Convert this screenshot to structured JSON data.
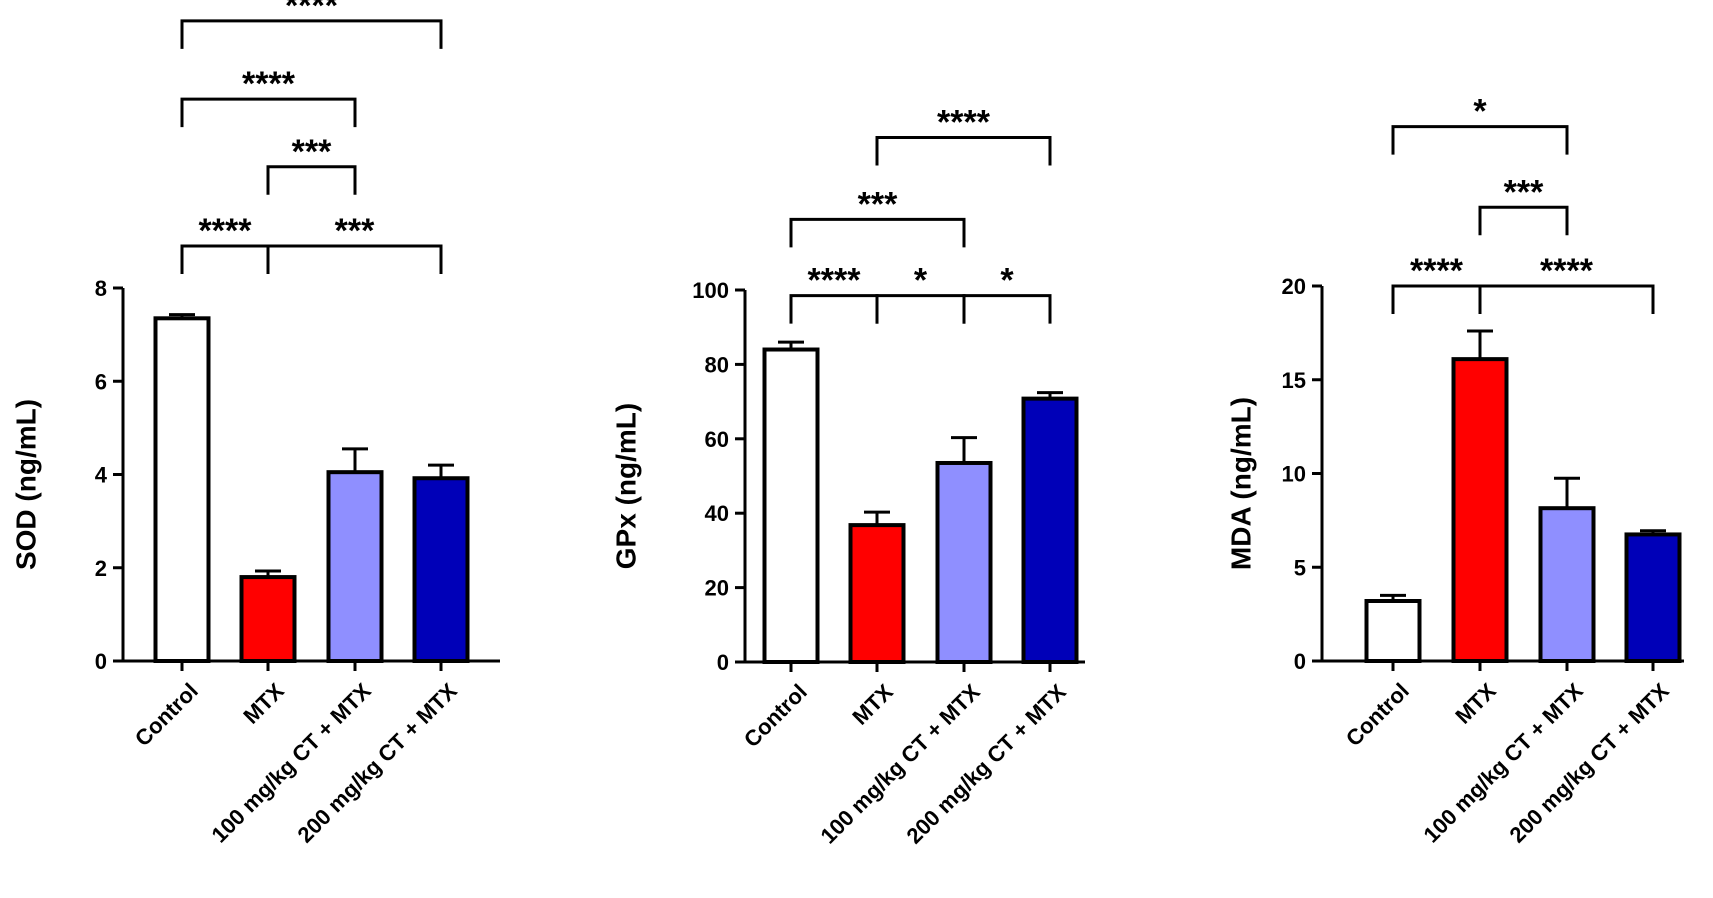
{
  "chart_data": [
    {
      "type": "bar",
      "ylabel": "SOD (ng/mL)",
      "categories": [
        "Control",
        "MTX",
        "100 mg/kg CT + MTX",
        "200 mg/kg CT + MTX"
      ],
      "values": [
        7.35,
        1.8,
        4.05,
        3.92
      ],
      "errors": [
        0.08,
        0.13,
        0.5,
        0.28
      ],
      "bar_colors": [
        "#ffffff",
        "#ff0000",
        "#8f8fff",
        "#0000b8"
      ],
      "ylim": [
        0,
        8
      ],
      "yticks": [
        0,
        2,
        4,
        6,
        8
      ],
      "comparisons": [
        {
          "from": 0,
          "to": 1,
          "label": "****",
          "y": 8.9
        },
        {
          "from": 1,
          "to": 3,
          "label": "***",
          "y": 8.9
        },
        {
          "from": 1,
          "to": 2,
          "label": "***",
          "y": 10.6
        },
        {
          "from": 0,
          "to": 2,
          "label": "****",
          "y": 12.05
        },
        {
          "from": 0,
          "to": 3,
          "label": "****",
          "y": 13.73
        }
      ]
    },
    {
      "type": "bar",
      "ylabel": "GPx (ng/mL)",
      "categories": [
        "Control",
        "MTX",
        "100 mg/kg CT + MTX",
        "200 mg/kg CT + MTX"
      ],
      "values": [
        84,
        36.8,
        53.5,
        70.8
      ],
      "errors": [
        2.0,
        3.5,
        6.8,
        1.6
      ],
      "bar_colors": [
        "#ffffff",
        "#ff0000",
        "#8f8fff",
        "#0000b8"
      ],
      "ylim": [
        0,
        100
      ],
      "yticks": [
        0,
        20,
        40,
        60,
        80,
        100
      ],
      "comparisons": [
        {
          "from": 0,
          "to": 1,
          "label": "****",
          "y": 98.5
        },
        {
          "from": 1,
          "to": 2,
          "label": "*",
          "y": 98.5
        },
        {
          "from": 2,
          "to": 3,
          "label": "*",
          "y": 98.5
        },
        {
          "from": 0,
          "to": 2,
          "label": "***",
          "y": 119
        },
        {
          "from": 1,
          "to": 3,
          "label": "****",
          "y": 141
        }
      ]
    },
    {
      "type": "bar",
      "ylabel": "MDA (ng/mL)",
      "categories": [
        "Control",
        "MTX",
        "100 mg/kg CT + MTX",
        "200 mg/kg CT + MTX"
      ],
      "values": [
        3.2,
        16.1,
        8.15,
        6.75
      ],
      "errors": [
        0.3,
        1.5,
        1.6,
        0.2
      ],
      "bar_colors": [
        "#ffffff",
        "#ff0000",
        "#8f8fff",
        "#0000b8"
      ],
      "ylim": [
        0,
        20
      ],
      "yticks": [
        0,
        5,
        10,
        15,
        20
      ],
      "comparisons": [
        {
          "from": 0,
          "to": 1,
          "label": "****",
          "y": 20.0
        },
        {
          "from": 1,
          "to": 3,
          "label": "****",
          "y": 20.0
        },
        {
          "from": 1,
          "to": 2,
          "label": "***",
          "y": 24.2
        },
        {
          "from": 0,
          "to": 2,
          "label": "*",
          "y": 28.5
        }
      ]
    }
  ]
}
